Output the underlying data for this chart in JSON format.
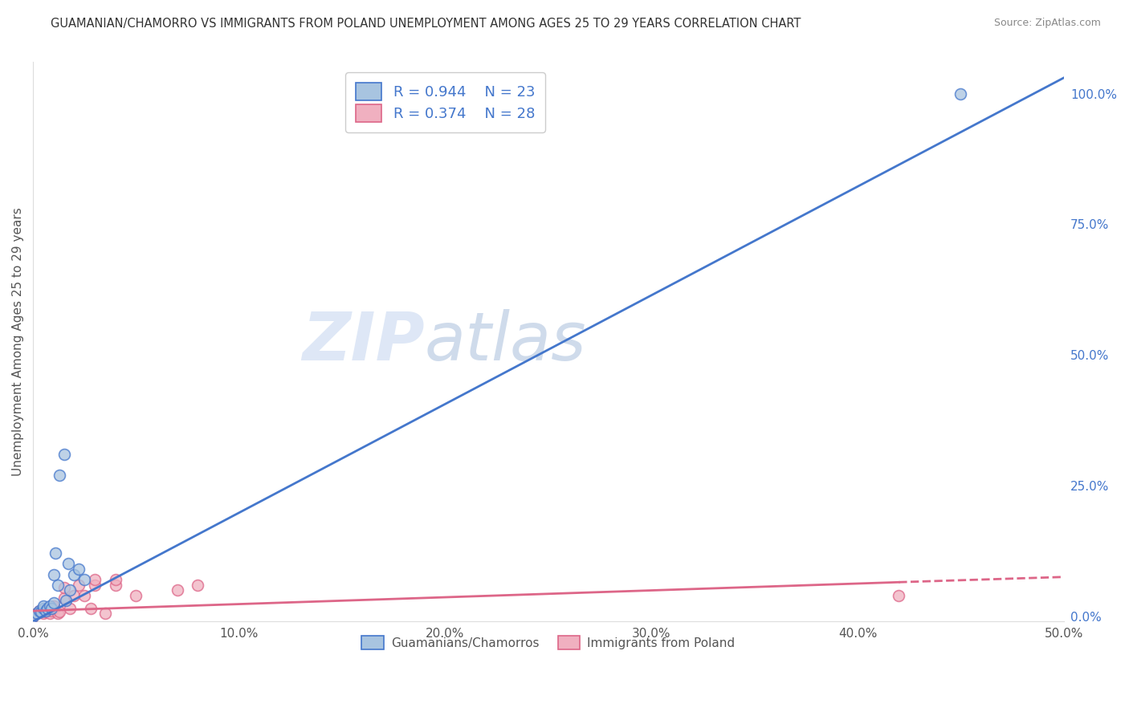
{
  "title": "GUAMANIAN/CHAMORRO VS IMMIGRANTS FROM POLAND UNEMPLOYMENT AMONG AGES 25 TO 29 YEARS CORRELATION CHART",
  "source": "Source: ZipAtlas.com",
  "ylabel": "Unemployment Among Ages 25 to 29 years",
  "blue_label": "Guamanians/Chamorros",
  "pink_label": "Immigrants from Poland",
  "blue_R": "0.944",
  "blue_N": "23",
  "pink_R": "0.374",
  "pink_N": "28",
  "blue_color": "#a8c4e0",
  "blue_line_color": "#4477cc",
  "pink_color": "#f0b0c0",
  "pink_line_color": "#dd6688",
  "watermark_zip": "ZIP",
  "watermark_atlas": "atlas",
  "blue_scatter_x": [
    0.0,
    0.002,
    0.003,
    0.004,
    0.005,
    0.005,
    0.006,
    0.007,
    0.008,
    0.009,
    0.01,
    0.01,
    0.011,
    0.012,
    0.013,
    0.015,
    0.016,
    0.017,
    0.018,
    0.02,
    0.022,
    0.025,
    0.45
  ],
  "blue_scatter_y": [
    0.0,
    0.005,
    0.01,
    0.008,
    0.015,
    0.02,
    0.01,
    0.015,
    0.02,
    0.015,
    0.025,
    0.08,
    0.12,
    0.06,
    0.27,
    0.31,
    0.03,
    0.1,
    0.05,
    0.08,
    0.09,
    0.07,
    1.0
  ],
  "pink_scatter_x": [
    0.0,
    0.002,
    0.003,
    0.005,
    0.006,
    0.007,
    0.008,
    0.009,
    0.01,
    0.01,
    0.012,
    0.013,
    0.015,
    0.015,
    0.018,
    0.02,
    0.022,
    0.025,
    0.028,
    0.03,
    0.03,
    0.035,
    0.04,
    0.04,
    0.05,
    0.07,
    0.08,
    0.42
  ],
  "pink_scatter_y": [
    0.0,
    0.005,
    0.01,
    0.005,
    0.008,
    0.012,
    0.005,
    0.01,
    0.015,
    0.02,
    0.005,
    0.008,
    0.035,
    0.055,
    0.015,
    0.04,
    0.06,
    0.04,
    0.015,
    0.06,
    0.07,
    0.005,
    0.06,
    0.07,
    0.04,
    0.05,
    0.06,
    0.04
  ],
  "blue_line_x0": 0.0,
  "blue_line_y0": -0.01,
  "blue_line_x1": 0.5,
  "blue_line_y1": 1.03,
  "pink_line_solid_x0": 0.0,
  "pink_line_solid_y0": 0.01,
  "pink_line_solid_x1": 0.42,
  "pink_line_solid_y1": 0.065,
  "pink_line_dash_x0": 0.42,
  "pink_line_dash_y0": 0.065,
  "pink_line_dash_x1": 0.5,
  "pink_line_dash_y1": 0.075,
  "xlim": [
    0.0,
    0.5
  ],
  "ylim": [
    -0.01,
    1.06
  ],
  "right_yticks": [
    0.0,
    0.25,
    0.5,
    0.75,
    1.0
  ],
  "right_yticklabels": [
    "0.0%",
    "25.0%",
    "50.0%",
    "75.0%",
    "100.0%"
  ],
  "xticks": [
    0.0,
    0.1,
    0.2,
    0.3,
    0.4,
    0.5
  ],
  "xticklabels": [
    "0.0%",
    "10.0%",
    "20.0%",
    "30.0%",
    "40.0%",
    "50.0%"
  ],
  "marker_size": 100,
  "background_color": "#ffffff",
  "grid_color": "#cccccc"
}
